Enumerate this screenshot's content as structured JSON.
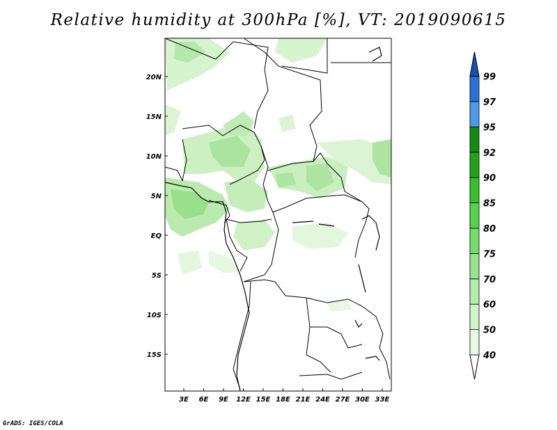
{
  "title": "Relative humidity at 300hPa [%], VT: 2019090615",
  "credit": "GrADS: IGES/COLA",
  "map": {
    "lat_ticks": [
      "20N",
      "15N",
      "10N",
      "5N",
      "EQ",
      "5S",
      "10S",
      "15S"
    ],
    "lon_ticks": [
      "3E",
      "6E",
      "9E",
      "12E",
      "15E",
      "18E",
      "21E",
      "24E",
      "27E",
      "30E",
      "33E"
    ]
  },
  "colorbar": {
    "levels": [
      "40",
      "50",
      "60",
      "70",
      "75",
      "80",
      "85",
      "90",
      "92",
      "95",
      "97",
      "99"
    ],
    "colors": [
      "#ffffff",
      "#e6fbe0",
      "#d0f5c8",
      "#b4edab",
      "#96e58c",
      "#76dc6b",
      "#55d24b",
      "#36c02c",
      "#22a31a",
      "#148a10",
      "#4b9ae8",
      "#2a70d8",
      "#1254b0"
    ]
  }
}
